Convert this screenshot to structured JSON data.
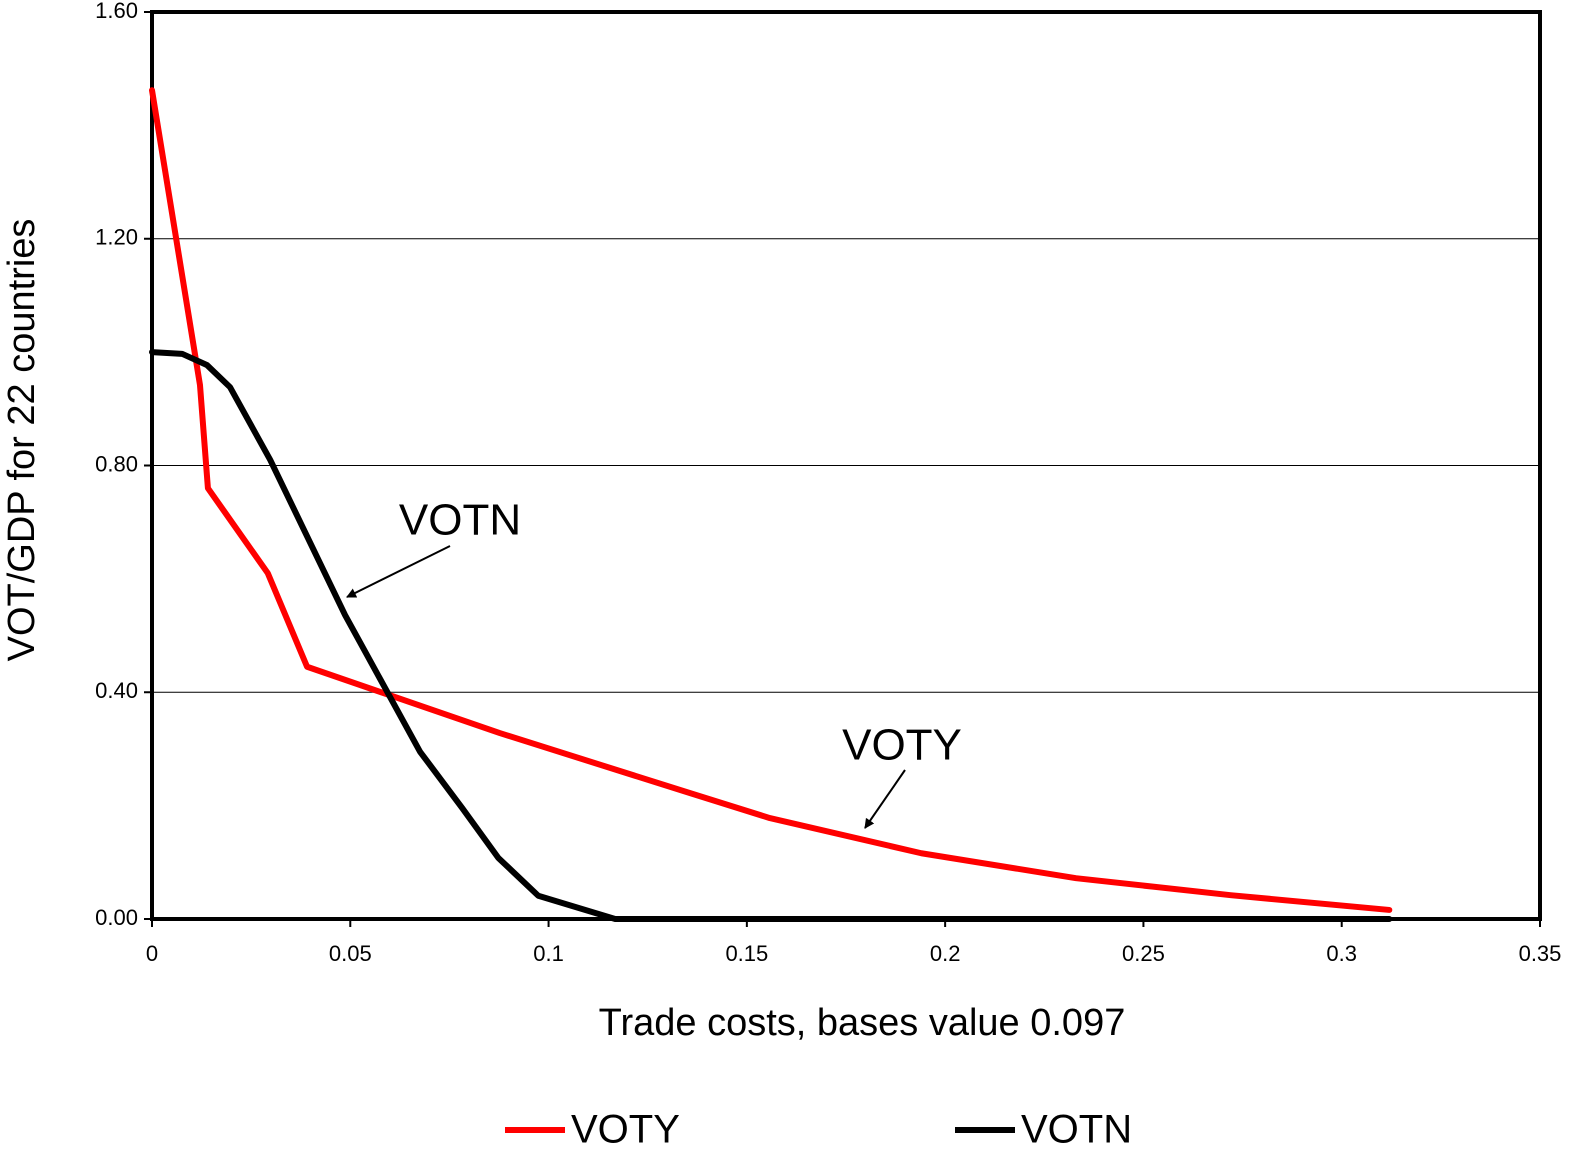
{
  "chart_data": {
    "type": "line",
    "xlabel": "Trade costs, bases value 0.097",
    "ylabel": "VOT/GDP for 22 countries",
    "xlim": [
      0,
      0.35
    ],
    "ylim": [
      0,
      1.6
    ],
    "xticks": [
      0,
      0.05,
      0.1,
      0.15,
      0.2,
      0.25,
      0.3,
      0.35
    ],
    "yticks": [
      {
        "value": 0,
        "label": "0.00"
      },
      {
        "value": 0.4,
        "label": "0.40"
      },
      {
        "value": 0.8,
        "label": "0.80"
      },
      {
        "value": 1.2,
        "label": "1.20"
      },
      {
        "value": 1.6,
        "label": "1.60"
      }
    ],
    "grid": true,
    "legend": "bottom",
    "annotations": [
      "VOTN",
      "VOTY"
    ],
    "series": [
      {
        "name": "VOTY",
        "color": "#ff0000",
        "x": [
          0,
          0.0121,
          0.0141,
          0.0292,
          0.0391,
          0.0877,
          0.1357,
          0.1558,
          0.194,
          0.233,
          0.272,
          0.312
        ],
        "values": [
          1.462,
          0.942,
          0.76,
          0.61,
          0.445,
          0.328,
          0.222,
          0.178,
          0.116,
          0.072,
          0.042,
          0.016
        ]
      },
      {
        "name": "VOTN",
        "color": "#000000",
        "x": [
          0,
          0.0076,
          0.0139,
          0.0197,
          0.0298,
          0.0487,
          0.0676,
          0.0782,
          0.0873,
          0.0974,
          0.1168,
          0.312
        ],
        "values": [
          1.0,
          0.997,
          0.977,
          0.938,
          0.81,
          0.536,
          0.295,
          0.196,
          0.108,
          0.041,
          0,
          0
        ]
      }
    ]
  }
}
